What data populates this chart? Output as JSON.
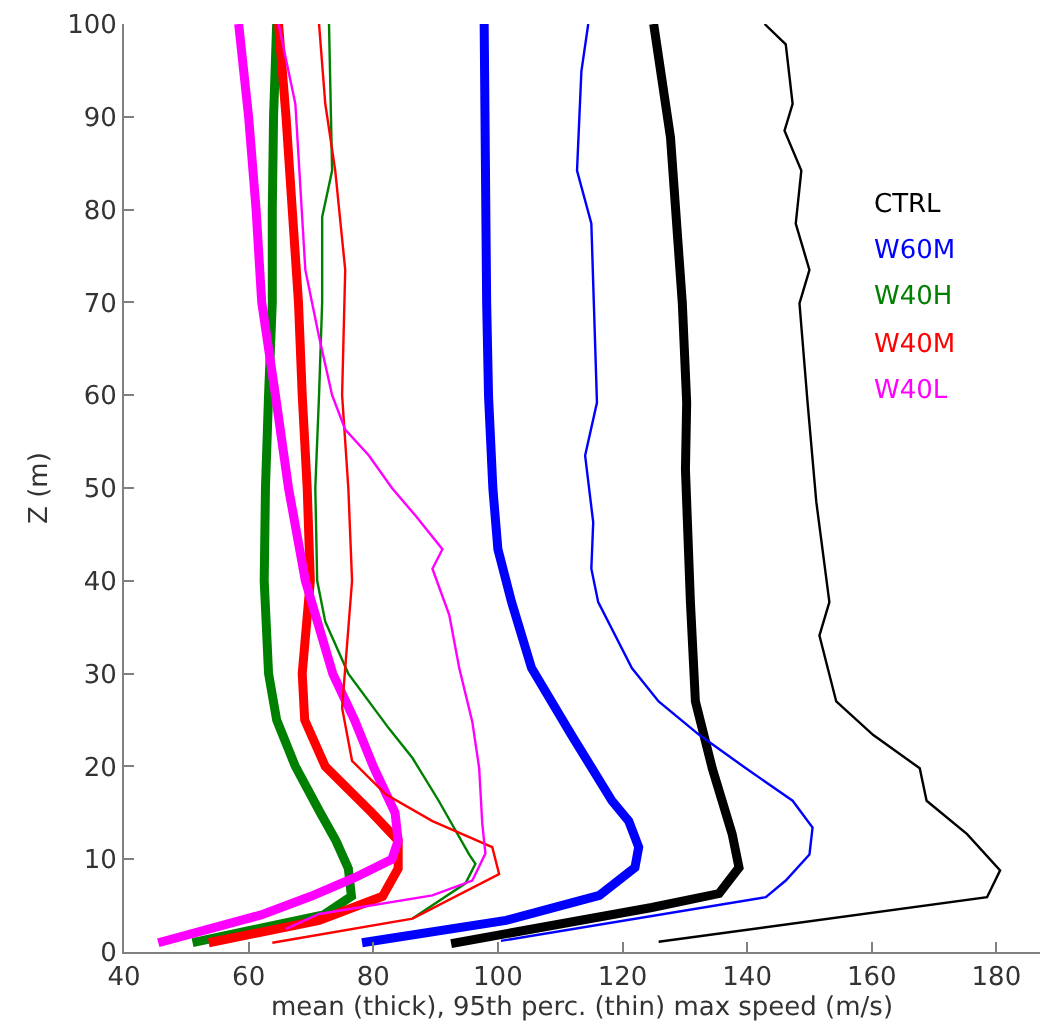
{
  "chart_data": {
    "type": "line",
    "xlabel": "mean (thick), 95th perc. (thin) max speed (m/s)",
    "ylabel": "Z (m)",
    "xlim": [
      40,
      187
    ],
    "xticks": [
      40,
      60,
      80,
      100,
      120,
      140,
      160,
      180
    ],
    "ylim": [
      0,
      100
    ],
    "yticks": [
      0,
      10,
      20,
      30,
      40,
      50,
      60,
      70,
      80,
      90,
      100
    ],
    "legend": false,
    "marker": "none",
    "line_style": "solid",
    "series": [
      {
        "name": "CTRL",
        "color": "#000000",
        "x": [
          92.5,
          124.7,
          135.5,
          138.7,
          137.6,
          134.4,
          131.7,
          130.9,
          130.1,
          130.3,
          129.6,
          127.7,
          125
        ],
        "values": [
          0.9,
          4.8,
          6.3,
          9.1,
          12.7,
          19.8,
          27,
          37.7,
          52,
          59.2,
          69.9,
          87.8,
          100
        ]
      },
      {
        "name": "W60M",
        "color": "#0000ff",
        "x": [
          78.2,
          101.3,
          116.3,
          122,
          122.6,
          121,
          118.3,
          111.8,
          105.4,
          102.2,
          100,
          99.2,
          98.5,
          98.2,
          97.8
        ],
        "values": [
          1,
          3.4,
          6.1,
          9.1,
          11.3,
          14.1,
          16.3,
          23.4,
          30.6,
          37.7,
          43.4,
          49.9,
          59.9,
          69.9,
          100
        ]
      },
      {
        "name": "W40H",
        "color": "#008000",
        "x": [
          51,
          72,
          76.5,
          76,
          74,
          71.5,
          67.5,
          64.5,
          63.2,
          62.5,
          62.7,
          63.2,
          63.8,
          63.8,
          64,
          64.5
        ],
        "values": [
          1,
          4,
          6,
          9,
          12,
          15,
          20,
          25,
          30,
          40,
          50,
          60,
          70,
          80,
          90,
          100
        ]
      },
      {
        "name": "W40M",
        "color": "#ff0000",
        "x": [
          53.6,
          71.3,
          81.5,
          84,
          84,
          79.8,
          72.3,
          69,
          68.6,
          69.9,
          69.4,
          68.6,
          68,
          67,
          66,
          64.8
        ],
        "values": [
          1,
          3.4,
          6,
          9,
          12,
          15,
          20,
          25,
          30,
          40,
          50,
          60,
          70,
          80,
          90,
          100
        ]
      },
      {
        "name": "W40L",
        "color": "#ff00ff",
        "x": [
          45.5,
          62,
          70,
          77,
          83,
          84,
          83.5,
          80,
          77,
          73.5,
          69.1,
          66.4,
          64.3,
          62.1,
          61.2,
          60,
          58.4
        ],
        "values": [
          1,
          4,
          6,
          8,
          10,
          12,
          15,
          20,
          25,
          30,
          40,
          50,
          60,
          70,
          80,
          90,
          100
        ]
      },
      {
        "color": "#000000",
        "x": [
          125.8,
          178.5,
          180.6,
          175.3,
          168.8,
          167.7,
          160.2,
          154.3,
          151.6,
          153.2,
          151.1,
          149.7,
          148.4,
          150,
          147.8,
          148.7,
          146,
          147.3,
          146.2,
          142.8
        ],
        "values": [
          1.1,
          5.9,
          8.8,
          12.7,
          16.3,
          19.8,
          23.4,
          27,
          34.1,
          37.7,
          48.5,
          59.2,
          69.9,
          73.5,
          78.5,
          84.2,
          88.5,
          91.4,
          97.8,
          100
        ]
      },
      {
        "color": "#0000ff",
        "x": [
          100.5,
          143,
          146.2,
          150,
          150.5,
          147.3,
          139.8,
          132.3,
          125.8,
          121.5,
          116.1,
          115,
          115.3,
          114,
          115.9,
          115.4,
          115,
          112.7,
          113.4,
          114.5
        ],
        "values": [
          1.2,
          5.9,
          7.7,
          10.5,
          13.4,
          16.3,
          19.8,
          23.4,
          27,
          30.6,
          37.7,
          41.3,
          46.3,
          53.5,
          59.2,
          69.9,
          78.5,
          84.2,
          94.9,
          100
        ]
      },
      {
        "color": "#008000",
        "x": [
          86.3,
          94.8,
          96.4,
          95.4,
          90.5,
          86.3,
          82.5,
          76,
          72.3,
          71,
          70.7,
          71.3,
          71.8,
          71.8,
          73.4,
          72.9
        ],
        "values": [
          3.6,
          7.4,
          9.5,
          10.5,
          16.3,
          20.9,
          24.1,
          30,
          35.6,
          40,
          50,
          60,
          70,
          79.2,
          84.2,
          100
        ]
      },
      {
        "color": "#ff0000",
        "x": [
          63.8,
          86.3,
          100.2,
          99.1,
          89.5,
          82,
          76.6,
          75,
          75.5,
          76.6,
          76,
          75,
          75.5,
          73.9,
          72.3,
          71.3
        ],
        "values": [
          1,
          3.6,
          8.4,
          11.3,
          14.1,
          17,
          20.6,
          26.3,
          30.6,
          40,
          50,
          60,
          73.5,
          84.2,
          91.4,
          100
        ]
      },
      {
        "color": "#ff00ff",
        "x": [
          66,
          71.3,
          89.5,
          95.9,
          98,
          97.5,
          97,
          95.9,
          93.8,
          92.2,
          89.5,
          91.1,
          86.8,
          83,
          79.3,
          75.5,
          73.4,
          71.3,
          69.1,
          67.5,
          64.8
        ],
        "values": [
          2.5,
          4.1,
          6.1,
          7.7,
          10.6,
          13.8,
          19.8,
          24.8,
          30.6,
          36.3,
          41.3,
          43.4,
          47,
          50,
          53.5,
          56.3,
          60,
          66.3,
          73.5,
          91.4,
          100
        ]
      }
    ]
  }
}
